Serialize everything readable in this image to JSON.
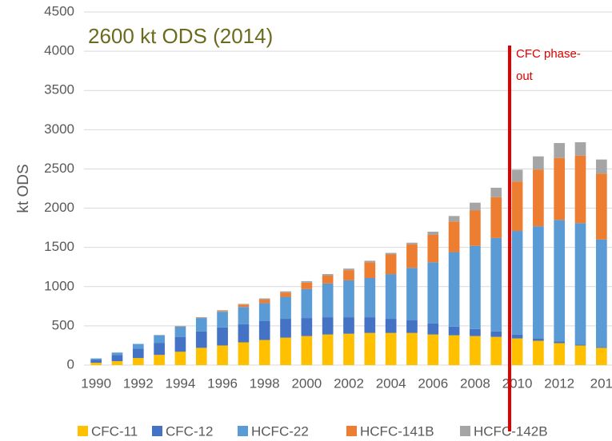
{
  "chart_data": {
    "type": "stacked_bar",
    "annotation": "2600 kt ODS (2014)",
    "marker_label": [
      "CFC phase-",
      "out"
    ],
    "y_label": "kt ODS",
    "categories": [
      "1990",
      null,
      "1992",
      null,
      "1994",
      null,
      "1996",
      null,
      "1998",
      null,
      "2000",
      null,
      "2002",
      null,
      "2004",
      null,
      "2006",
      null,
      "2008",
      null,
      "2010",
      null,
      "2012",
      null,
      "201"
    ],
    "series": [
      {
        "name": "CFC-11",
        "color": "#ffc000",
        "values": [
          30,
          50,
          90,
          130,
          170,
          220,
          250,
          290,
          320,
          350,
          370,
          390,
          400,
          410,
          410,
          410,
          390,
          380,
          370,
          360,
          340,
          310,
          280,
          250,
          220
        ]
      },
      {
        "name": "CFC-12",
        "color": "#4472c4",
        "values": [
          40,
          80,
          120,
          150,
          190,
          210,
          230,
          230,
          240,
          240,
          230,
          220,
          210,
          200,
          180,
          160,
          140,
          110,
          90,
          70,
          50,
          30,
          20,
          10,
          10
        ]
      },
      {
        "name": "HCFC-22",
        "color": "#5b9bd5",
        "values": [
          15,
          30,
          60,
          100,
          130,
          170,
          200,
          220,
          230,
          280,
          370,
          430,
          470,
          500,
          570,
          670,
          780,
          950,
          1060,
          1190,
          1320,
          1430,
          1550,
          1550,
          1370
        ]
      },
      {
        "name": "HCFC-141B",
        "color": "#ed7d31",
        "values": [
          0,
          0,
          0,
          0,
          5,
          5,
          10,
          30,
          45,
          55,
          80,
          100,
          130,
          200,
          250,
          300,
          350,
          390,
          450,
          520,
          630,
          720,
          790,
          860,
          840
        ]
      },
      {
        "name": "HCFC-142B",
        "color": "#a5a5a5",
        "values": [
          0,
          0,
          0,
          5,
          5,
          5,
          10,
          10,
          15,
          15,
          20,
          20,
          20,
          20,
          20,
          20,
          40,
          70,
          100,
          120,
          150,
          170,
          190,
          170,
          180
        ]
      }
    ],
    "ylim": [
      0,
      4500
    ],
    "yticks": [
      0,
      500,
      1000,
      1500,
      2000,
      2500,
      3000,
      3500,
      4000,
      4500
    ],
    "grid": true,
    "legend": "bottom"
  }
}
